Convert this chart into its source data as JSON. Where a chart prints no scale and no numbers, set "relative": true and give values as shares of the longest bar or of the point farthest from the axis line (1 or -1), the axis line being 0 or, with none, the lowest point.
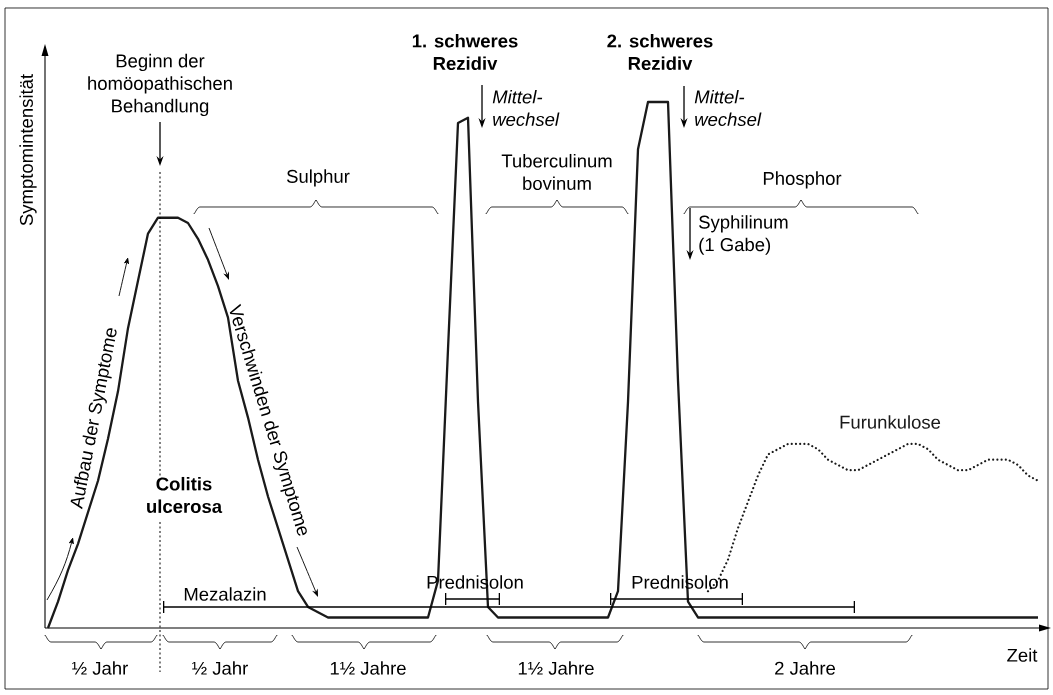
{
  "chart_data": {
    "type": "line",
    "relative": true,
    "marker": "none",
    "xlabel": "Zeit",
    "ylabel": "Symptomintensität",
    "categories": [
      null,
      null,
      null,
      null,
      null,
      null,
      null,
      null,
      null,
      null,
      null,
      null,
      null,
      null,
      null,
      null,
      null,
      null,
      null,
      null,
      null,
      null,
      null,
      null,
      null,
      null,
      null,
      null,
      null,
      null,
      null,
      null,
      null,
      null,
      null,
      null,
      null,
      null,
      null,
      null,
      null,
      null,
      null,
      null,
      null,
      null,
      null,
      null,
      null,
      null,
      null,
      null,
      null,
      null,
      null,
      null,
      null,
      null,
      null,
      null,
      null,
      null,
      null,
      null,
      null,
      null,
      null,
      null,
      null,
      null,
      null,
      null,
      null,
      null,
      null,
      null,
      null,
      null,
      null,
      null,
      null,
      null,
      null,
      null,
      null,
      null,
      null,
      null,
      null,
      null,
      null,
      null,
      null,
      null,
      null,
      null,
      null,
      null,
      null,
      null
    ],
    "series": [
      {
        "color": "#1a1a1a",
        "line_style": "solid",
        "values": [
          0,
          0.05,
          0.11,
          0.16,
          0.22,
          0.28,
          0.36,
          0.45,
          0.57,
          0.66,
          0.75,
          0.78,
          0.78,
          0.78,
          0.77,
          0.74,
          0.7,
          0.65,
          0.59,
          0.47,
          0.4,
          0.32,
          0.25,
          0.19,
          0.13,
          0.07,
          0.04,
          0.03,
          0.02,
          0.02,
          0.02,
          0.02,
          0.02,
          0.02,
          0.02,
          0.02,
          0.02,
          0.02,
          0.02,
          0.09,
          0.53,
          0.96,
          0.97,
          0.43,
          0.04,
          0.02,
          0.02,
          0.02,
          0.02,
          0.02,
          0.02,
          0.02,
          0.02,
          0.02,
          0.02,
          0.02,
          0.02,
          0.07,
          0.43,
          0.91,
          1,
          1,
          1,
          0.47,
          0.05,
          0.02,
          0.02,
          0.02,
          0.02,
          0.02,
          0.02,
          0.02,
          0.02,
          0.02,
          0.02,
          0.02,
          0.02,
          0.02,
          0.02,
          0.02,
          0.02,
          0.02,
          0.02,
          0.02,
          0.02,
          0.02,
          0.02,
          0.02,
          0.02,
          0.02,
          0.02,
          0.02,
          0.02,
          0.02,
          0.02,
          0.02,
          0.02,
          0.02,
          0.02,
          0.02
        ]
      },
      {
        "name": "Furunkulose",
        "color": "#1a1a1a",
        "line_style": "dotted",
        "values": [
          null,
          null,
          null,
          null,
          null,
          null,
          null,
          null,
          null,
          null,
          null,
          null,
          null,
          null,
          null,
          null,
          null,
          null,
          null,
          null,
          null,
          null,
          null,
          null,
          null,
          null,
          null,
          null,
          null,
          null,
          null,
          null,
          null,
          null,
          null,
          null,
          null,
          null,
          null,
          null,
          null,
          null,
          null,
          null,
          null,
          null,
          null,
          null,
          null,
          null,
          null,
          null,
          null,
          null,
          null,
          null,
          null,
          null,
          null,
          null,
          null,
          null,
          null,
          null,
          null,
          null,
          0.07,
          0.09,
          0.13,
          0.19,
          0.24,
          0.29,
          0.33,
          0.34,
          0.35,
          0.35,
          0.35,
          0.34,
          0.32,
          0.31,
          0.3,
          0.3,
          0.31,
          0.32,
          0.33,
          0.34,
          0.35,
          0.35,
          0.34,
          0.32,
          0.31,
          0.3,
          0.3,
          0.31,
          0.32,
          0.32,
          0.32,
          0.31,
          0.29,
          0.28
        ]
      }
    ],
    "annotations": [
      "Beginn der homöopathischen Behandlung",
      "Sulphur",
      "1. schweres Rezidiv",
      "Mittel-wechsel",
      "Tuberculinum bovinum",
      "2. schweres Rezidiv",
      "Mittel-wechsel",
      "Phosphor",
      "Syphilinum (1 Gabe)",
      "Aufbau der Symptome",
      "Verschwinden der Symptome",
      "Colitis ulcerosa",
      "Mezalazin",
      "Prednisolon",
      "Prednisolon",
      "½ Jahr",
      "½ Jahr",
      "1½ Jahre",
      "1½ Jahre",
      "2 Jahre"
    ]
  }
}
